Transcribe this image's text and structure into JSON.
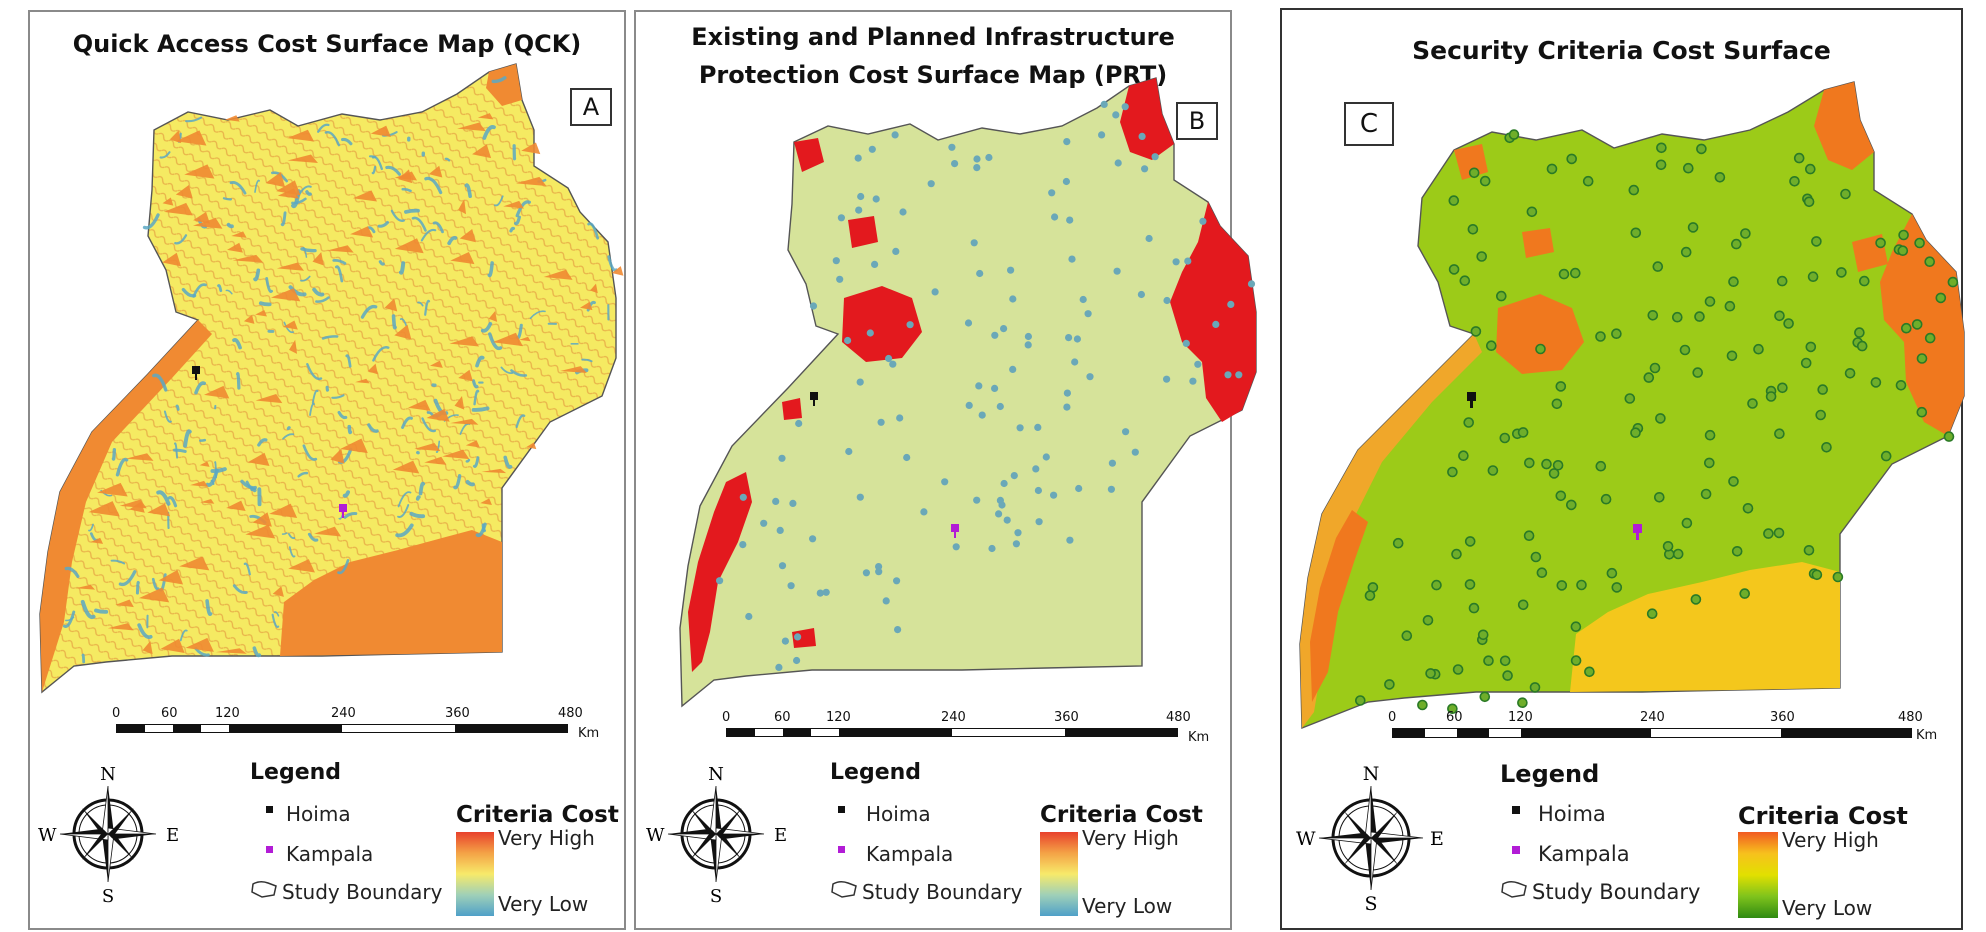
{
  "panels": [
    {
      "title_lines": [
        "Quick Access Cost Surface Map (QCK)"
      ],
      "label": "A",
      "legend": {
        "heading": "Legend",
        "items": [
          "Hoima",
          "Kampala",
          "Study Boundary"
        ],
        "cost_title": "Criteria Cost",
        "high": "Very High",
        "low": "Very Low",
        "gradient": [
          "#e8412c",
          "#f4a246",
          "#f7ea6a",
          "#9fd0b8",
          "#4fa0c8"
        ]
      },
      "scale": {
        "ticks": [
          "0",
          "60",
          "120",
          "240",
          "360",
          "480"
        ],
        "unit": "Km"
      },
      "compass": {
        "n": "N",
        "s": "S",
        "e": "E",
        "w": "W"
      },
      "palette": {
        "base": "#f5ea62",
        "high": "#f08a32",
        "low": "#5aa8c4"
      }
    },
    {
      "title_lines": [
        "Existing and Planned Infrastructure",
        "Protection Cost Surface Map (PRT)"
      ],
      "label": "B",
      "legend": {
        "heading": "Legend",
        "items": [
          "Hoima",
          "Kampala",
          "Study Boundary"
        ],
        "cost_title": "Criteria Cost",
        "high": "Very High",
        "low": "Very Low",
        "gradient": [
          "#e8412c",
          "#f4a246",
          "#f7ea6a",
          "#9fd0b8",
          "#4fa0c8"
        ]
      },
      "scale": {
        "ticks": [
          "0",
          "60",
          "120",
          "240",
          "360",
          "480"
        ],
        "unit": "Km"
      },
      "compass": {
        "n": "N",
        "s": "S",
        "e": "E",
        "w": "W"
      },
      "palette": {
        "base": "#d6e39a",
        "high": "#e3191e",
        "low": "#6aa8b8"
      }
    },
    {
      "title_lines": [
        "Security Criteria Cost Surface"
      ],
      "label": "C",
      "legend": {
        "heading": "Legend",
        "items": [
          "Hoima",
          "Kampala",
          "Study Boundary"
        ],
        "cost_title": "Criteria Cost",
        "high": "Very High",
        "low": "Very Low",
        "gradient": [
          "#f15a22",
          "#f7c11d",
          "#e2e000",
          "#7fc31c",
          "#2f8a12"
        ]
      },
      "scale": {
        "ticks": [
          "0",
          "60",
          "120",
          "240",
          "360",
          "480"
        ],
        "unit": "Km"
      },
      "compass": {
        "n": "N",
        "s": "S",
        "e": "E",
        "w": "W"
      },
      "palette": {
        "base": "#9ccb18",
        "high": "#f0781e",
        "low": "#2a7a26"
      }
    }
  ],
  "markers": {
    "hoima_color": "#111111",
    "kampala_color": "#b21cd6"
  }
}
